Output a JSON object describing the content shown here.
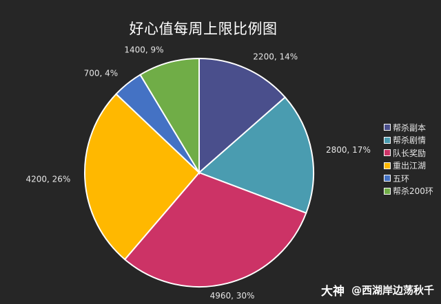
{
  "chart_data": {
    "type": "pie",
    "title": "好心值每周上限比例图",
    "slices": [
      {
        "name": "帮杀副本",
        "value": 2200,
        "percent": "14%",
        "color": "#4a4f8c"
      },
      {
        "name": "帮杀剧情",
        "value": 2800,
        "percent": "17%",
        "color": "#4a9cb0"
      },
      {
        "name": "队长奖励",
        "value": 4960,
        "percent": "30%",
        "color": "#cc3366"
      },
      {
        "name": "重出江湖",
        "value": 4200,
        "percent": "26%",
        "color": "#ffb800"
      },
      {
        "name": "五环",
        "value": 700,
        "percent": "4%",
        "color": "#4472c4"
      },
      {
        "name": "帮杀200环",
        "value": 1400,
        "percent": "9%",
        "color": "#70ad47"
      }
    ],
    "data_labels": [
      "2200, 14%",
      "2800, 17%",
      "4960, 30%",
      "4200, 26%",
      "700, 4%",
      "1400, 9%"
    ],
    "legend": {
      "position": "right",
      "items": [
        "帮杀副本",
        "帮杀剧情",
        "队长奖励",
        "重出江湖",
        "五环",
        "帮杀200环"
      ]
    }
  },
  "watermark": {
    "logo": "大神",
    "handle": "@西湖岸边荡秋千"
  }
}
